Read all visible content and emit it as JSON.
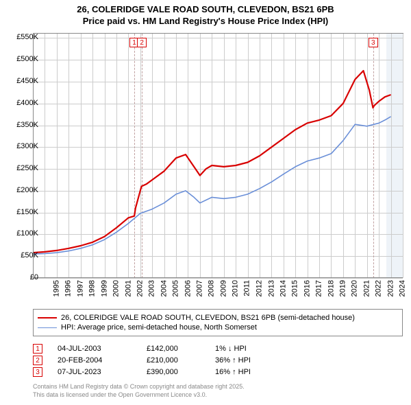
{
  "title": {
    "line1": "26, COLERIDGE VALE ROAD SOUTH, CLEVEDON, BS21 6PB",
    "line2": "Price paid vs. HM Land Registry's House Price Index (HPI)",
    "fontsize": 13,
    "color": "#000000"
  },
  "chart": {
    "type": "line",
    "background_color": "#ffffff",
    "grid_color": "#cccccc",
    "axis_color": "#888888",
    "x": {
      "min": 1995,
      "max": 2026,
      "ticks": [
        1995,
        1996,
        1997,
        1998,
        1999,
        2000,
        2001,
        2002,
        2003,
        2004,
        2005,
        2006,
        2007,
        2008,
        2009,
        2010,
        2011,
        2012,
        2013,
        2014,
        2015,
        2016,
        2017,
        2018,
        2019,
        2020,
        2021,
        2022,
        2023,
        2024,
        2025,
        2026
      ],
      "label_fontsize": 11
    },
    "y": {
      "min": 0,
      "max": 560000,
      "ticks": [
        0,
        50000,
        100000,
        150000,
        200000,
        250000,
        300000,
        350000,
        400000,
        450000,
        500000,
        550000
      ],
      "tick_labels": [
        "£0",
        "£50K",
        "£100K",
        "£150K",
        "£200K",
        "£250K",
        "£300K",
        "£350K",
        "£400K",
        "£450K",
        "£500K",
        "£550K"
      ],
      "label_fontsize": 11
    },
    "end_band": {
      "from": 2024.6,
      "to": 2026,
      "color": "#eef3f8"
    },
    "series": [
      {
        "name": "price_paid",
        "label": "26, COLERIDGE VALE ROAD SOUTH, CLEVEDON, BS21 6PB (semi-detached house)",
        "color": "#d80000",
        "line_width": 2.2,
        "data": [
          [
            1995,
            58000
          ],
          [
            1996,
            60000
          ],
          [
            1997,
            63000
          ],
          [
            1998,
            68000
          ],
          [
            1999,
            74000
          ],
          [
            2000,
            82000
          ],
          [
            2001,
            95000
          ],
          [
            2002,
            115000
          ],
          [
            2003,
            138000
          ],
          [
            2003.5,
            142000
          ],
          [
            2003.6,
            160000
          ],
          [
            2004.1,
            210000
          ],
          [
            2004.5,
            215000
          ],
          [
            2005,
            225000
          ],
          [
            2006,
            245000
          ],
          [
            2007,
            275000
          ],
          [
            2007.8,
            283000
          ],
          [
            2008.5,
            255000
          ],
          [
            2009,
            235000
          ],
          [
            2009.5,
            250000
          ],
          [
            2010,
            258000
          ],
          [
            2011,
            255000
          ],
          [
            2012,
            258000
          ],
          [
            2013,
            265000
          ],
          [
            2014,
            280000
          ],
          [
            2015,
            300000
          ],
          [
            2016,
            320000
          ],
          [
            2017,
            340000
          ],
          [
            2018,
            355000
          ],
          [
            2019,
            362000
          ],
          [
            2020,
            372000
          ],
          [
            2021,
            400000
          ],
          [
            2022,
            455000
          ],
          [
            2022.7,
            475000
          ],
          [
            2023.2,
            430000
          ],
          [
            2023.5,
            390000
          ],
          [
            2023.6,
            395000
          ],
          [
            2024,
            405000
          ],
          [
            2024.5,
            415000
          ],
          [
            2025,
            420000
          ]
        ]
      },
      {
        "name": "hpi",
        "label": "HPI: Average price, semi-detached house, North Somerset",
        "color": "#6a8fd8",
        "line_width": 1.6,
        "data": [
          [
            1995,
            55000
          ],
          [
            1996,
            56000
          ],
          [
            1997,
            58000
          ],
          [
            1998,
            62000
          ],
          [
            1999,
            68000
          ],
          [
            2000,
            76000
          ],
          [
            2001,
            88000
          ],
          [
            2002,
            105000
          ],
          [
            2003,
            125000
          ],
          [
            2004,
            148000
          ],
          [
            2005,
            158000
          ],
          [
            2006,
            172000
          ],
          [
            2007,
            192000
          ],
          [
            2007.8,
            200000
          ],
          [
            2008.5,
            185000
          ],
          [
            2009,
            172000
          ],
          [
            2010,
            185000
          ],
          [
            2011,
            182000
          ],
          [
            2012,
            185000
          ],
          [
            2013,
            192000
          ],
          [
            2014,
            205000
          ],
          [
            2015,
            220000
          ],
          [
            2016,
            238000
          ],
          [
            2017,
            255000
          ],
          [
            2018,
            268000
          ],
          [
            2019,
            275000
          ],
          [
            2020,
            285000
          ],
          [
            2021,
            315000
          ],
          [
            2022,
            352000
          ],
          [
            2023,
            348000
          ],
          [
            2024,
            355000
          ],
          [
            2024.5,
            362000
          ],
          [
            2025,
            370000
          ]
        ]
      }
    ],
    "transaction_markers": [
      {
        "n": "1",
        "x": 2003.5,
        "color": "#d80000"
      },
      {
        "n": "2",
        "x": 2004.14,
        "color": "#d80000"
      },
      {
        "n": "3",
        "x": 2023.52,
        "color": "#d80000"
      }
    ]
  },
  "legend": {
    "fontsize": 11,
    "items": [
      {
        "color": "#d80000",
        "width": 2.2,
        "label": "26, COLERIDGE VALE ROAD SOUTH, CLEVEDON, BS21 6PB (semi-detached house)"
      },
      {
        "color": "#6a8fd8",
        "width": 1.6,
        "label": "HPI: Average price, semi-detached house, North Somerset"
      }
    ]
  },
  "transactions": {
    "fontsize": 11,
    "rows": [
      {
        "n": "1",
        "color": "#d80000",
        "date": "04-JUL-2003",
        "price": "£142,000",
        "change": "1% ↓ HPI"
      },
      {
        "n": "2",
        "color": "#d80000",
        "date": "20-FEB-2004",
        "price": "£210,000",
        "change": "36% ↑ HPI"
      },
      {
        "n": "3",
        "color": "#d80000",
        "date": "07-JUL-2023",
        "price": "£390,000",
        "change": "16% ↑ HPI"
      }
    ]
  },
  "footer": {
    "line1": "Contains HM Land Registry data © Crown copyright and database right 2025.",
    "line2": "This data is licensed under the Open Government Licence v3.0.",
    "fontsize": 9,
    "color": "#888888"
  }
}
